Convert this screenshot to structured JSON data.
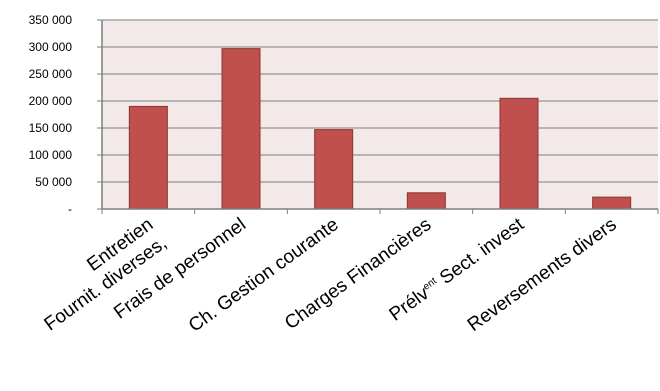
{
  "chart_data": {
    "type": "bar",
    "title": "",
    "xlabel": "",
    "ylabel": "",
    "ylim": [
      0,
      350000
    ],
    "yticks": [
      "-",
      "50 000",
      "100 000",
      "150 000",
      "200 000",
      "250 000",
      "300 000",
      "350 000"
    ],
    "categories": [
      [
        "Entretien",
        "Fournit. diverses,"
      ],
      [
        "Frais de personnel"
      ],
      [
        "Ch. Gestion courante"
      ],
      [
        "Charges Financières"
      ],
      [
        "Prélv",
        "ent",
        " Sect.  invest"
      ],
      [
        "Reversements divers"
      ]
    ],
    "values": [
      190000,
      297000,
      147000,
      30000,
      205000,
      22000
    ],
    "grid": true,
    "legend": "none",
    "colors": {
      "bar": "#c0504d",
      "bar_edge": "#8e3331",
      "plot_bg": "#f3e9e9",
      "grid": "#7f7f7f",
      "axis": "#7f7f7f"
    }
  }
}
